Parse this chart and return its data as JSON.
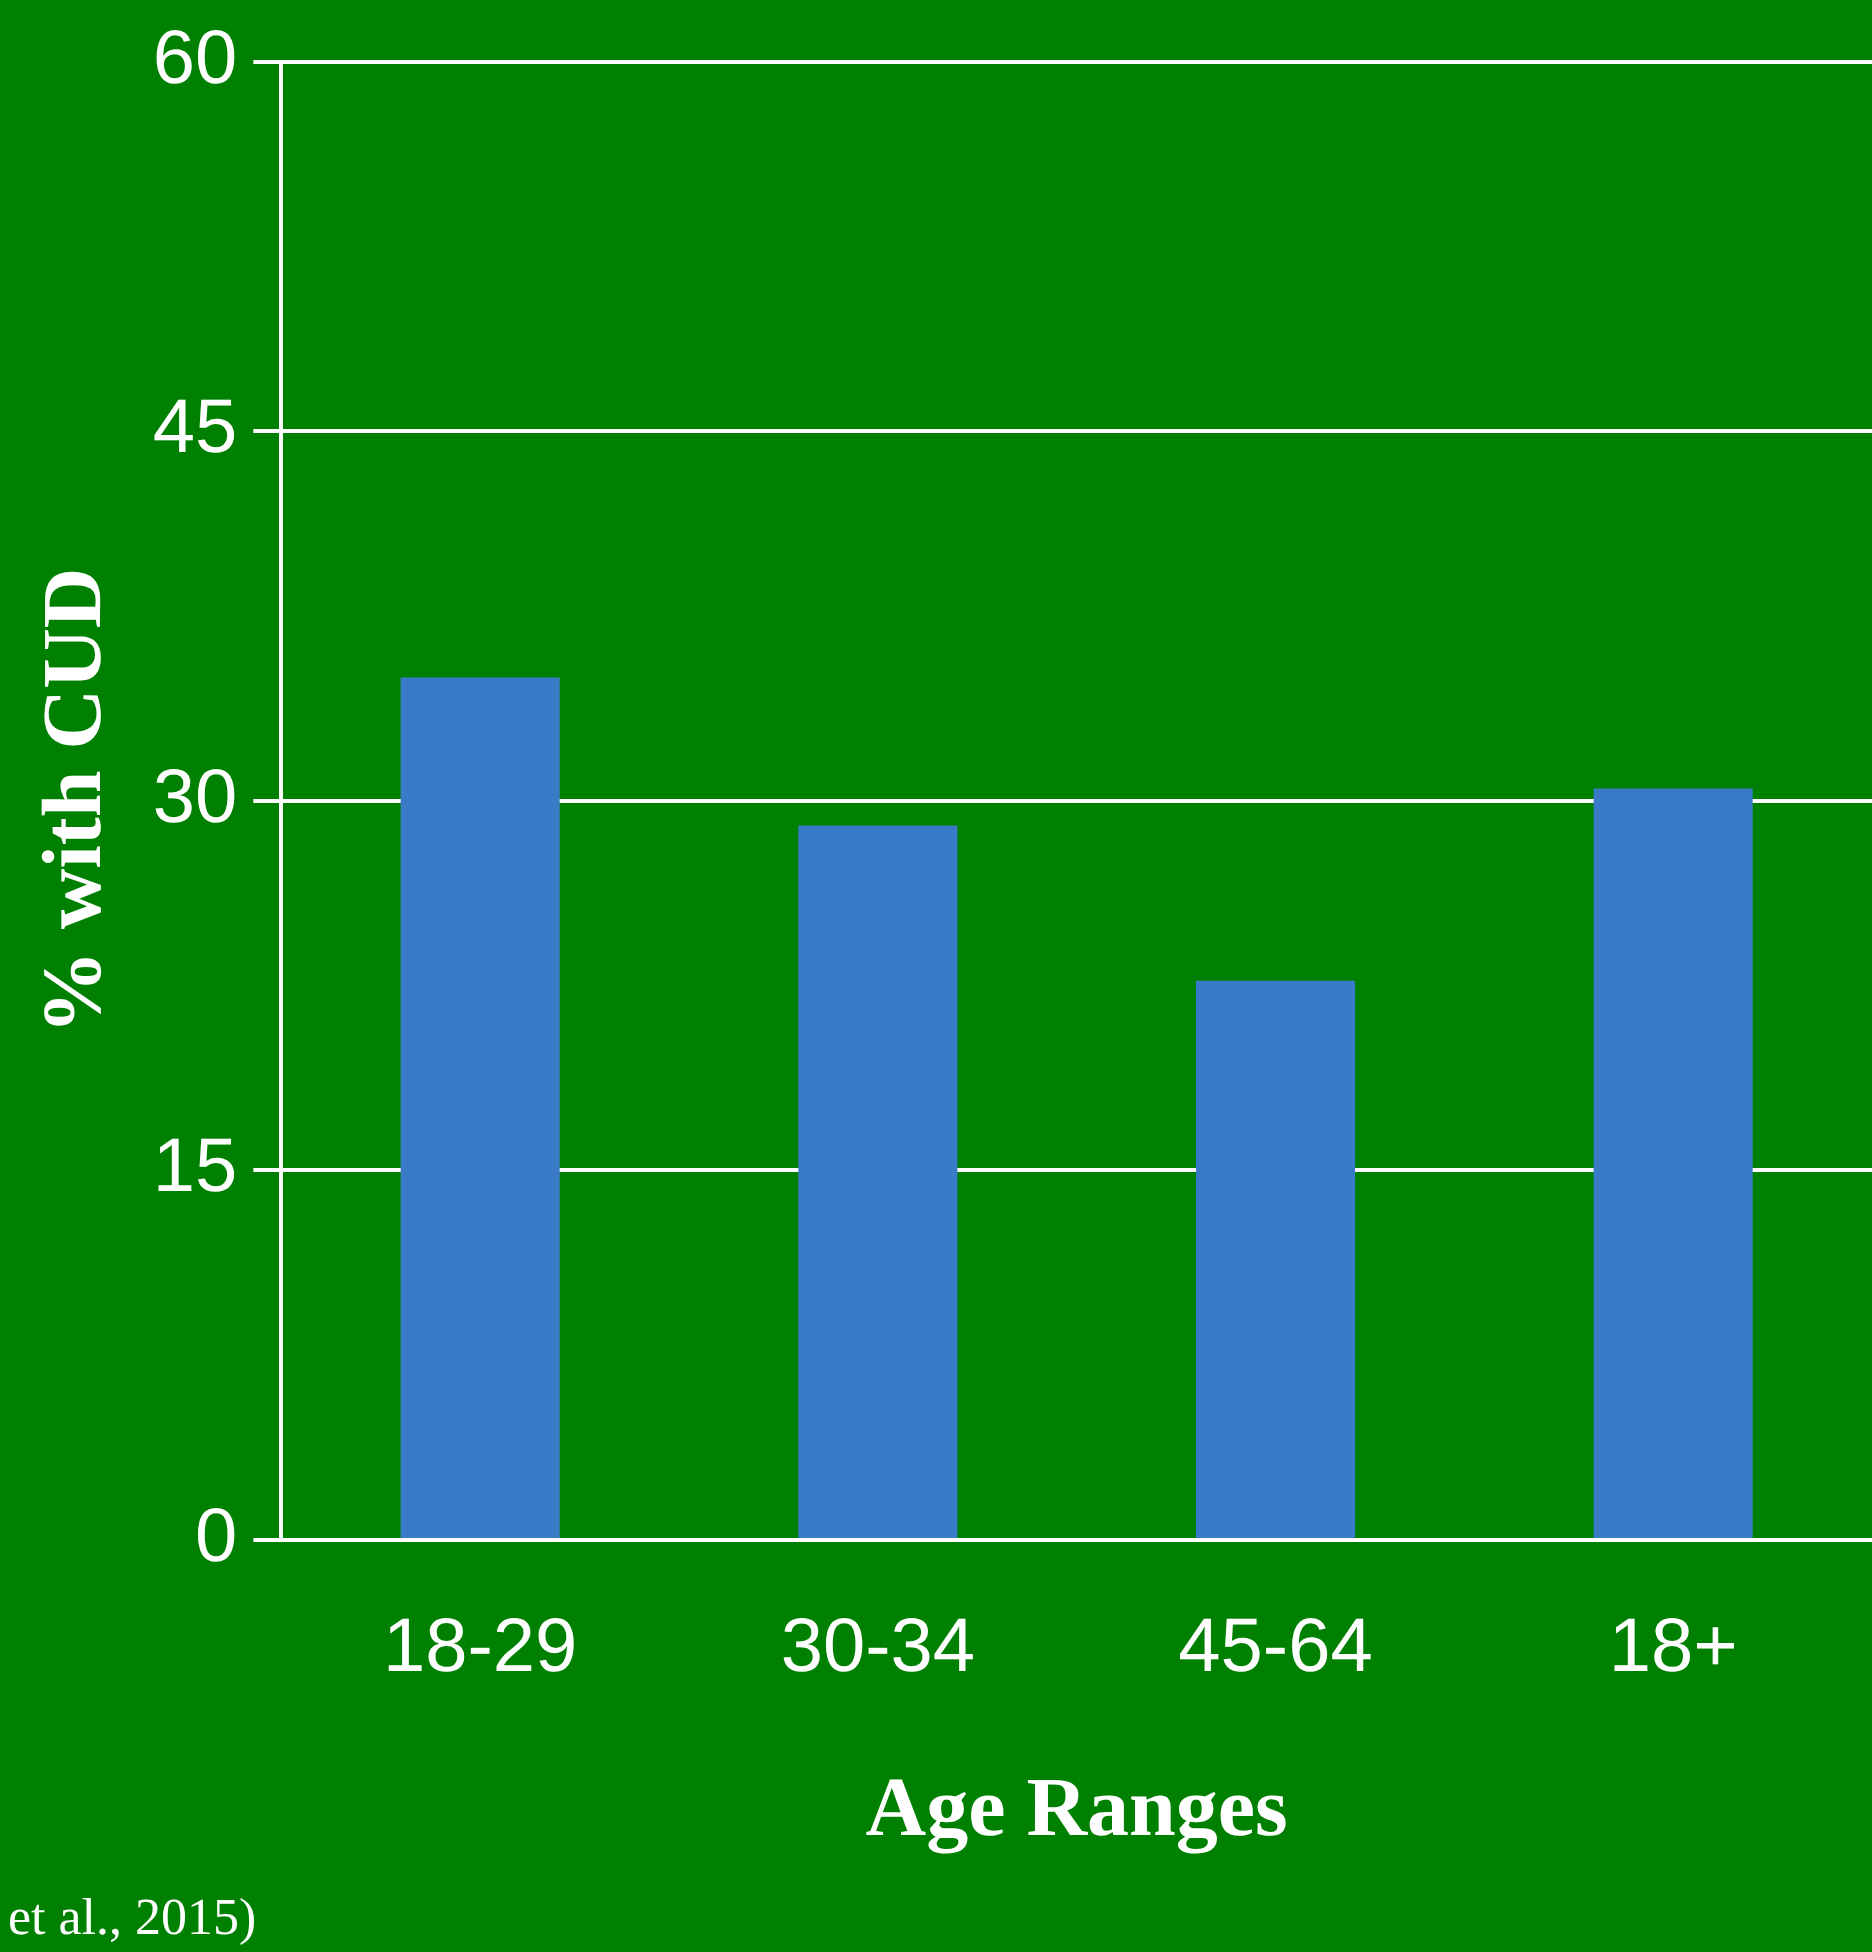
{
  "chart_data": {
    "type": "bar",
    "xlabel": "Age Ranges",
    "ylabel": "% with CUD",
    "categories": [
      "18-29",
      "30-34",
      "45-64",
      "18+"
    ],
    "series": [
      {
        "color": "#3a7bc8",
        "values": [
          35,
          29,
          22.7,
          30.5
        ]
      }
    ],
    "ylim": [
      0,
      60
    ],
    "yticks": [
      0,
      15,
      30,
      45,
      60
    ],
    "grid": "y",
    "legend": false,
    "annotations": [
      "et al., 2015)"
    ]
  }
}
